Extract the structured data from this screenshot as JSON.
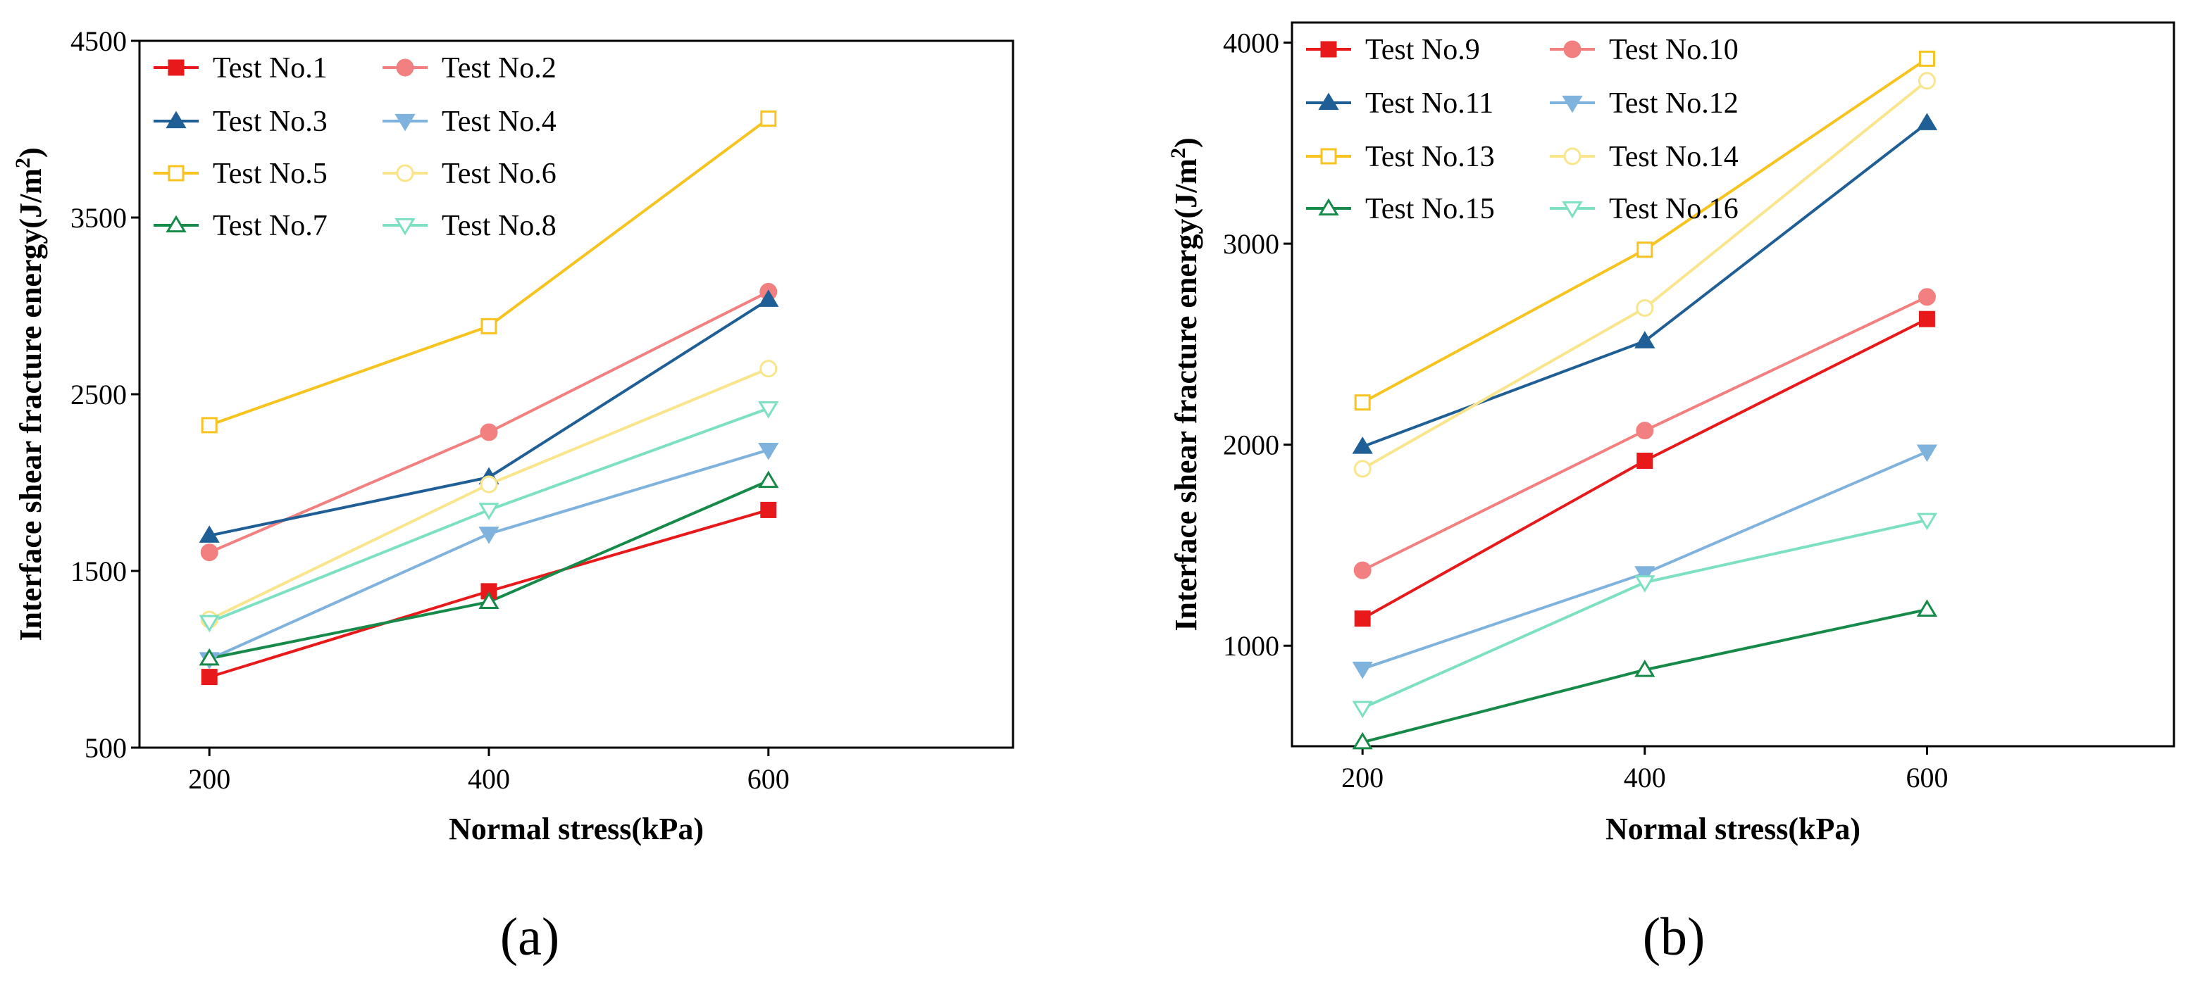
{
  "chart_data": [
    {
      "type": "line",
      "panel_label": "(a)",
      "xlabel": "Normal stress(kPa)",
      "ylabel": "Interface shear fracture energy(J/m",
      "ylabel_sup": "2",
      "ylabel_end": ")",
      "x": [
        200,
        400,
        600
      ],
      "x_ticks": [
        "200",
        "400",
        "600"
      ],
      "y_ticks": [
        "500",
        "1500",
        "2500",
        "3500",
        "4500"
      ],
      "xlim": [
        150,
        775
      ],
      "ylim": [
        500,
        4500
      ],
      "legend_position": "top-left",
      "series": [
        {
          "name": "Test No.1",
          "values": [
            900,
            1385,
            1845
          ],
          "color": "#e8191a",
          "marker": "square",
          "filled": true
        },
        {
          "name": "Test No.2",
          "values": [
            1605,
            2285,
            3080
          ],
          "color": "#f28080",
          "marker": "circle",
          "filled": true
        },
        {
          "name": "Test No.3",
          "values": [
            1700,
            2030,
            3035
          ],
          "color": "#1f5f96",
          "marker": "triangle-up",
          "filled": true
        },
        {
          "name": "Test No.4",
          "values": [
            1000,
            1710,
            2185
          ],
          "color": "#7fb3de",
          "marker": "triangle-down",
          "filled": true
        },
        {
          "name": "Test No.5",
          "values": [
            2325,
            2885,
            4060
          ],
          "color": "#f7c31f",
          "marker": "square",
          "filled": false
        },
        {
          "name": "Test No.6",
          "values": [
            1225,
            1990,
            2645
          ],
          "color": "#f9e58c",
          "marker": "circle",
          "filled": false
        },
        {
          "name": "Test No.7",
          "values": [
            1005,
            1325,
            2010
          ],
          "color": "#178a4a",
          "marker": "triangle-up",
          "filled": false
        },
        {
          "name": "Test No.8",
          "values": [
            1210,
            1845,
            2420
          ],
          "color": "#7ee0c3",
          "marker": "triangle-down",
          "filled": false
        }
      ]
    },
    {
      "type": "line",
      "panel_label": "(b)",
      "xlabel": "Normal stress(kPa)",
      "ylabel": "Interface shear fracture energy(J/m",
      "ylabel_sup": "2",
      "ylabel_end": ")",
      "x": [
        200,
        400,
        600
      ],
      "x_ticks": [
        "200",
        "400",
        "600"
      ],
      "y_ticks": [
        "1000",
        "2000",
        "3000",
        "4000"
      ],
      "xlim": [
        150,
        775
      ],
      "ylim": [
        500,
        4100
      ],
      "legend_position": "top-left",
      "series": [
        {
          "name": "Test No.9",
          "values": [
            1135,
            1920,
            2625
          ],
          "color": "#e8191a",
          "marker": "square",
          "filled": true
        },
        {
          "name": "Test No.10",
          "values": [
            1375,
            2070,
            2735
          ],
          "color": "#f28080",
          "marker": "circle",
          "filled": true
        },
        {
          "name": "Test No.11",
          "values": [
            1990,
            2515,
            3600
          ],
          "color": "#1f5f96",
          "marker": "triangle-up",
          "filled": true
        },
        {
          "name": "Test No.12",
          "values": [
            885,
            1360,
            1965
          ],
          "color": "#7fb3de",
          "marker": "triangle-down",
          "filled": true
        },
        {
          "name": "Test No.13",
          "values": [
            2210,
            2970,
            3920
          ],
          "color": "#f7c31f",
          "marker": "square",
          "filled": false
        },
        {
          "name": "Test No.14",
          "values": [
            1880,
            2680,
            3810
          ],
          "color": "#f9e58c",
          "marker": "circle",
          "filled": false
        },
        {
          "name": "Test No.15",
          "values": [
            520,
            880,
            1180
          ],
          "color": "#178a4a",
          "marker": "triangle-up",
          "filled": false
        },
        {
          "name": "Test No.16",
          "values": [
            690,
            1315,
            1625
          ],
          "color": "#7ee0c3",
          "marker": "triangle-down",
          "filled": false
        }
      ]
    }
  ]
}
